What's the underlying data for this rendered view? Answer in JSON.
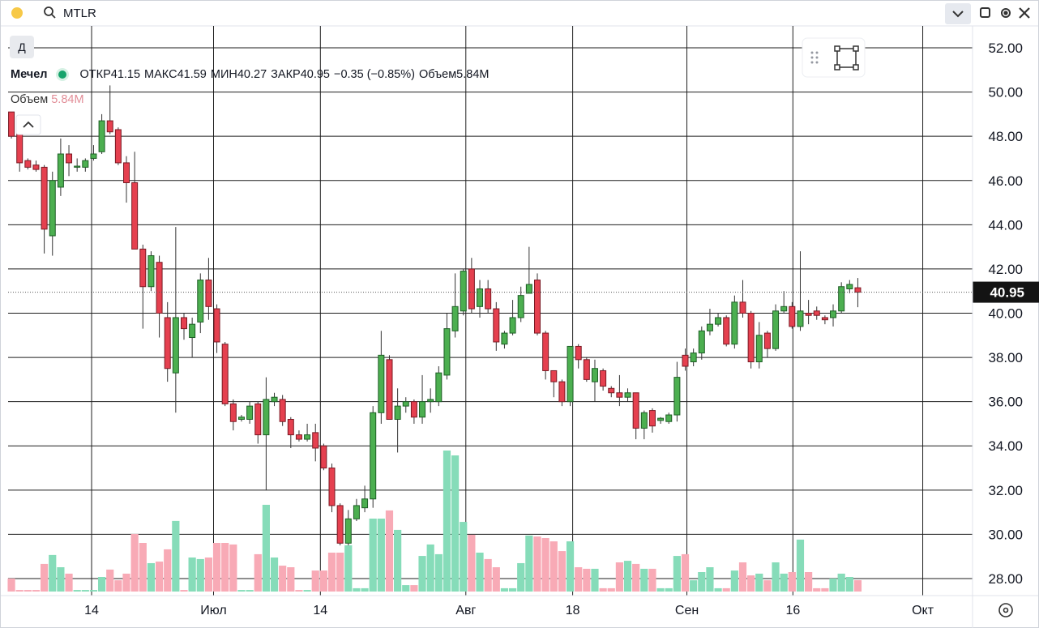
{
  "search": "MTLR",
  "interval": "Д",
  "chart_data": {
    "type": "candlestick",
    "title": "Мечел",
    "ohlc_labels": [
      "ОТКР",
      "МАКС",
      "МИН",
      "ЗАКР"
    ],
    "change_label": "−0.35 (−0.85%)",
    "volume_label": "Объем",
    "volume_value_label": "5.84M",
    "open": [
      49.1,
      48.3,
      46.9,
      46.7,
      46.6,
      43.5,
      45.7,
      47.2,
      46.6,
      46.6,
      47.0,
      47.3,
      48.7,
      48.3,
      46.8,
      45.9,
      42.9,
      41.2,
      42.3,
      39.8,
      37.3,
      39.8,
      38.9,
      39.6,
      41.5,
      40.2,
      38.6,
      35.9,
      35.2,
      35.2,
      35.9,
      34.5,
      36.0,
      36.1,
      35.2,
      34.5,
      34.3,
      34.6,
      34.0,
      33.0,
      31.3,
      29.6,
      30.7,
      31.2,
      31.6,
      35.5,
      37.9,
      35.2,
      35.8,
      36.0,
      35.3,
      36.0,
      36.0,
      37.2,
      39.2,
      40.1,
      42.0,
      40.3,
      41.1,
      40.2,
      38.6,
      39.1,
      39.8,
      40.9,
      41.5,
      39.1,
      37.4,
      36.9,
      36.0,
      38.5,
      37.9,
      36.9,
      37.4,
      36.6,
      36.4,
      36.2,
      36.4,
      34.8,
      35.6,
      35.15,
      35.1,
      35.4,
      38.1,
      37.8,
      38.2,
      39.2,
      39.5,
      39.8,
      38.6,
      40.5,
      40.0,
      37.8,
      39.1,
      38.4,
      40.1,
      40.3,
      39.4,
      40.0,
      40.1,
      39.8,
      39.8,
      40.1,
      41.1,
      41.15
    ],
    "high": [
      49.1,
      48.5,
      47.0,
      46.9,
      46.7,
      46.4,
      47.9,
      47.6,
      47.0,
      47.0,
      47.6,
      49.0,
      50.3,
      48.4,
      47.1,
      47.3,
      43.1,
      42.8,
      42.6,
      40.5,
      43.9,
      40.0,
      39.8,
      41.8,
      42.5,
      40.4,
      38.7,
      36.1,
      35.4,
      36.0,
      36.0,
      37.1,
      36.4,
      36.3,
      35.3,
      34.7,
      35.0,
      35.0,
      34.1,
      33.2,
      31.4,
      31.1,
      31.6,
      32.2,
      35.8,
      39.2,
      38.1,
      36.6,
      36.2,
      36.1,
      37.2,
      36.6,
      37.6,
      40.0,
      41.8,
      42.0,
      42.5,
      41.5,
      41.5,
      40.5,
      39.2,
      40.6,
      41.2,
      43.0,
      41.8,
      39.2,
      37.4,
      37.0,
      38.5,
      38.6,
      38.0,
      37.9,
      37.5,
      36.7,
      37.2,
      36.6,
      36.4,
      35.6,
      35.7,
      35.3,
      35.5,
      37.8,
      38.4,
      38.4,
      39.4,
      40.2,
      40.0,
      39.9,
      40.8,
      41.5,
      40.1,
      39.6,
      39.2,
      40.4,
      41.0,
      40.5,
      42.8,
      40.6,
      40.3,
      39.9,
      40.4,
      41.4,
      41.5,
      41.59
    ],
    "low": [
      47.9,
      46.4,
      46.5,
      46.4,
      42.7,
      42.6,
      45.3,
      46.2,
      46.4,
      46.4,
      46.9,
      47.2,
      48.1,
      46.7,
      45.0,
      42.9,
      39.3,
      41.0,
      38.9,
      36.9,
      35.5,
      38.8,
      38.0,
      39.1,
      39.7,
      38.2,
      35.8,
      34.7,
      35.1,
      35.0,
      34.1,
      32.0,
      35.8,
      34.9,
      33.9,
      34.2,
      34.2,
      33.3,
      32.9,
      31.0,
      29.5,
      29.5,
      30.6,
      31.0,
      31.2,
      35.0,
      35.2,
      33.7,
      35.5,
      35.0,
      35.0,
      35.5,
      35.8,
      37.0,
      38.9,
      39.9,
      40.0,
      39.8,
      40.0,
      38.3,
      38.4,
      39.0,
      39.6,
      40.9,
      39.0,
      37.0,
      36.2,
      35.8,
      35.8,
      37.5,
      36.9,
      36.0,
      36.5,
      36.2,
      35.8,
      36.0,
      34.3,
      34.3,
      34.6,
      35.0,
      35.0,
      35.1,
      37.4,
      37.6,
      37.9,
      39.0,
      39.4,
      38.5,
      38.4,
      39.8,
      37.5,
      37.5,
      38.0,
      38.3,
      40.0,
      39.3,
      39.2,
      39.5,
      39.7,
      39.5,
      39.4,
      40.0,
      40.9,
      40.27
    ],
    "close": [
      48.0,
      46.8,
      46.6,
      46.5,
      43.8,
      46.0,
      47.2,
      46.8,
      46.65,
      46.9,
      47.2,
      48.7,
      48.2,
      46.8,
      45.9,
      42.9,
      41.2,
      42.6,
      40.0,
      37.5,
      39.8,
      39.3,
      39.5,
      41.5,
      40.3,
      38.7,
      35.9,
      35.1,
      35.3,
      35.8,
      34.5,
      36.1,
      36.2,
      35.1,
      34.5,
      34.3,
      34.5,
      33.9,
      33.0,
      31.3,
      29.6,
      30.7,
      31.3,
      31.6,
      35.5,
      38.1,
      35.2,
      35.8,
      36.0,
      35.3,
      36.0,
      36.1,
      37.3,
      39.3,
      40.3,
      41.9,
      40.2,
      41.1,
      40.2,
      38.7,
      39.1,
      39.8,
      40.8,
      41.3,
      39.1,
      37.4,
      36.9,
      36.0,
      38.5,
      37.9,
      37.0,
      37.5,
      36.7,
      36.4,
      36.2,
      36.4,
      34.8,
      35.5,
      34.9,
      35.25,
      35.4,
      37.1,
      37.6,
      38.2,
      39.2,
      39.5,
      39.8,
      38.6,
      40.5,
      40.0,
      37.8,
      39.0,
      38.4,
      40.1,
      40.3,
      39.4,
      40.1,
      39.9,
      39.9,
      39.7,
      40.1,
      41.2,
      41.3,
      40.95
    ],
    "volume": [
      6.7,
      0.8,
      0.8,
      0.8,
      14.2,
      18.8,
      12.5,
      9.2,
      0.8,
      0.8,
      0.8,
      7.5,
      11.3,
      5.8,
      9.2,
      29.6,
      25.0,
      14.6,
      15.4,
      21.7,
      36.3,
      0.8,
      17.5,
      16.7,
      17.5,
      25.0,
      25.0,
      24.2,
      0.8,
      0.8,
      19.2,
      44.6,
      17.5,
      13.3,
      12.5,
      0.8,
      0.8,
      10.8,
      10.8,
      20.0,
      20.0,
      23.8,
      1.7,
      1.7,
      37.5,
      37.5,
      41.7,
      31.7,
      3.3,
      3.3,
      18.3,
      24.2,
      19.2,
      72.5,
      70.0,
      35.8,
      29.2,
      20.0,
      16.7,
      12.5,
      1.7,
      1.7,
      14.6,
      28.8,
      28.3,
      27.5,
      25.8,
      20.8,
      25.8,
      12.5,
      11.7,
      11.7,
      1.7,
      1.7,
      15.0,
      15.8,
      14.2,
      11.7,
      11.7,
      1.7,
      1.7,
      18.3,
      19.2,
      5.8,
      10.0,
      12.5,
      1.7,
      1.7,
      10.8,
      15.0,
      8.3,
      9.2,
      5.8,
      15.0,
      9.2,
      10.0,
      26.7,
      10.0,
      1.7,
      1.7,
      6.7,
      9.2,
      7.5,
      5.84
    ],
    "ylim": [
      27.23,
      52.99
    ],
    "yticks": [
      {
        "value": 28,
        "label": "28.00"
      },
      {
        "value": 30,
        "label": "30.00"
      },
      {
        "value": 32,
        "label": "32.00"
      },
      {
        "value": 34,
        "label": "34.00"
      },
      {
        "value": 36,
        "label": "36.00"
      },
      {
        "value": 38,
        "label": "38.00"
      },
      {
        "value": 40,
        "label": "40.00"
      },
      {
        "value": 42,
        "label": "42.00"
      },
      {
        "value": 44,
        "label": "44.00"
      },
      {
        "value": 46,
        "label": "46.00"
      },
      {
        "value": 48,
        "label": "48.00"
      },
      {
        "value": 50,
        "label": "50.00"
      },
      {
        "value": 52,
        "label": "52.00"
      }
    ],
    "xlim": [
      -0.4,
      116.96
    ],
    "xticks": [
      {
        "value": 9.76,
        "label": "14"
      },
      {
        "value": 24.6,
        "label": "Июл"
      },
      {
        "value": 37.6,
        "label": "14"
      },
      {
        "value": 55.3,
        "label": "Авг"
      },
      {
        "value": 68.3,
        "label": "18"
      },
      {
        "value": 82.2,
        "label": "Сен"
      },
      {
        "value": 95.1,
        "label": "16"
      },
      {
        "value": 110.9,
        "label": "Окт"
      }
    ],
    "grid": true,
    "up_color": "#4caf50",
    "down_color": "#e5404f",
    "volume_up_color": "#86dcb9",
    "volume_down_color": "#f8aab6"
  }
}
